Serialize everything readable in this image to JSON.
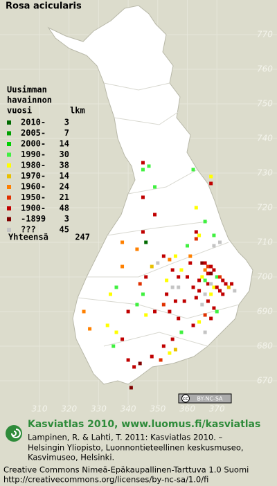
{
  "title": "Rosa acicularis",
  "legend": {
    "heading": [
      "Uusimman",
      "havainnon",
      "vuosi"
    ],
    "count_heading": "lkm",
    "classes": [
      {
        "label": "2010-",
        "count": 3,
        "color": "#006a00"
      },
      {
        "label": "2005-",
        "count": 7,
        "color": "#00a000"
      },
      {
        "label": "2000-",
        "count": 14,
        "color": "#00d000"
      },
      {
        "label": "1990-",
        "count": 30,
        "color": "#40f040"
      },
      {
        "label": "1980-",
        "count": 38,
        "color": "#ffff00"
      },
      {
        "label": "1970-",
        "count": 14,
        "color": "#e8c000"
      },
      {
        "label": "1960-",
        "count": 24,
        "color": "#ff8000"
      },
      {
        "label": "1950-",
        "count": 21,
        "color": "#e03000"
      },
      {
        "label": "1900-",
        "count": 48,
        "color": "#c00000"
      },
      {
        "label": "-1899",
        "count": 3,
        "color": "#800000"
      },
      {
        "label": "???",
        "count": 45,
        "color": "#c4c4c4"
      }
    ],
    "total_label": "Yhteensä",
    "total": 247
  },
  "grid": {
    "xticks": [
      310,
      320,
      330,
      340,
      350,
      360,
      370
    ],
    "yticks": [
      770,
      760,
      750,
      740,
      730,
      720,
      710,
      700,
      690,
      680,
      670
    ]
  },
  "records": [
    [
      345,
      733,
      8
    ],
    [
      345,
      731,
      3
    ],
    [
      347,
      732,
      3
    ],
    [
      368,
      729,
      4
    ],
    [
      362,
      731,
      3
    ],
    [
      349,
      726,
      3
    ],
    [
      368,
      727,
      8
    ],
    [
      345,
      723,
      8
    ],
    [
      363,
      720,
      4
    ],
    [
      349,
      718,
      8
    ],
    [
      366,
      716,
      3
    ],
    [
      363,
      711,
      7
    ],
    [
      363,
      713,
      8
    ],
    [
      364,
      712,
      4
    ],
    [
      371,
      710,
      10
    ],
    [
      369,
      712,
      3
    ],
    [
      369,
      709,
      10
    ],
    [
      346,
      710,
      0
    ],
    [
      338,
      710,
      6
    ],
    [
      343,
      708,
      6
    ],
    [
      345,
      713,
      8
    ],
    [
      365,
      704,
      9
    ],
    [
      366,
      704,
      8
    ],
    [
      367,
      703,
      7
    ],
    [
      368,
      703,
      8
    ],
    [
      366,
      702,
      6
    ],
    [
      367,
      701,
      8
    ],
    [
      368,
      701,
      9
    ],
    [
      369,
      702,
      8
    ],
    [
      370,
      700,
      3
    ],
    [
      371,
      700,
      7
    ],
    [
      372,
      699,
      8
    ],
    [
      365,
      700,
      4
    ],
    [
      364,
      699,
      8
    ],
    [
      366,
      699,
      3
    ],
    [
      367,
      698,
      8
    ],
    [
      368,
      698,
      10
    ],
    [
      369,
      697,
      4
    ],
    [
      370,
      697,
      8
    ],
    [
      371,
      696,
      8
    ],
    [
      373,
      698,
      8
    ],
    [
      374,
      697,
      5
    ],
    [
      375,
      698,
      8
    ],
    [
      376,
      696,
      10
    ],
    [
      372,
      695,
      8
    ],
    [
      368,
      695,
      4
    ],
    [
      366,
      695,
      10
    ],
    [
      364,
      696,
      8
    ],
    [
      362,
      697,
      8
    ],
    [
      363,
      694,
      8
    ],
    [
      365,
      692,
      10
    ],
    [
      367,
      693,
      8
    ],
    [
      369,
      691,
      8
    ],
    [
      366,
      689,
      7
    ],
    [
      368,
      688,
      8
    ],
    [
      370,
      690,
      3
    ],
    [
      364,
      687,
      4
    ],
    [
      362,
      686,
      8
    ],
    [
      366,
      684,
      10
    ],
    [
      359,
      693,
      8
    ],
    [
      357,
      697,
      10
    ],
    [
      360,
      700,
      8
    ],
    [
      358,
      702,
      4
    ],
    [
      361,
      704,
      8
    ],
    [
      357,
      700,
      8
    ],
    [
      355,
      702,
      8
    ],
    [
      355,
      697,
      10
    ],
    [
      353,
      699,
      4
    ],
    [
      353,
      695,
      8
    ],
    [
      356,
      693,
      8
    ],
    [
      352,
      692,
      7
    ],
    [
      354,
      690,
      8
    ],
    [
      357,
      688,
      8
    ],
    [
      358,
      684,
      3
    ],
    [
      355,
      682,
      8
    ],
    [
      356,
      679,
      5
    ],
    [
      352,
      680,
      8
    ],
    [
      349,
      690,
      8
    ],
    [
      346,
      689,
      4
    ],
    [
      345,
      695,
      3
    ],
    [
      346,
      700,
      8
    ],
    [
      344,
      698,
      7
    ],
    [
      348,
      703,
      5
    ],
    [
      350,
      704,
      10
    ],
    [
      352,
      706,
      8
    ],
    [
      356,
      706,
      4
    ],
    [
      354,
      705,
      6
    ],
    [
      360,
      709,
      3
    ],
    [
      361,
      706,
      6
    ],
    [
      338,
      703,
      6
    ],
    [
      336,
      697,
      3
    ],
    [
      334,
      695,
      4
    ],
    [
      325,
      690,
      6
    ],
    [
      336,
      684,
      4
    ],
    [
      335,
      680,
      3
    ],
    [
      338,
      682,
      8
    ],
    [
      340,
      676,
      8
    ],
    [
      344,
      675,
      9
    ],
    [
      342,
      674,
      8
    ],
    [
      348,
      677,
      8
    ],
    [
      351,
      676,
      7
    ],
    [
      354,
      678,
      4
    ],
    [
      341,
      668,
      9
    ],
    [
      327,
      685,
      6
    ],
    [
      333,
      686,
      4
    ],
    [
      340,
      690,
      8
    ],
    [
      343,
      692,
      3
    ]
  ],
  "badge": {
    "cc": "cc",
    "text": "BY-NC-SA"
  },
  "footer": {
    "headline": "Kasviatlas 2010, www.luomus.fi/kasviatlas",
    "citation": [
      "Lampinen, R. & Lahti, T. 2011: Kasviatlas 2010. –",
      "Helsingin Yliopisto, Luonnontieteellinen keskusmuseo,",
      "Kasvimuseo, Helsinki."
    ],
    "license": [
      "Creative Commons Nimeä-Epäkaupallinen-Tarttuva 1.0 Suomi",
      "http://creativecommons.org/licenses/by-nc-sa/1.0/fi"
    ]
  }
}
